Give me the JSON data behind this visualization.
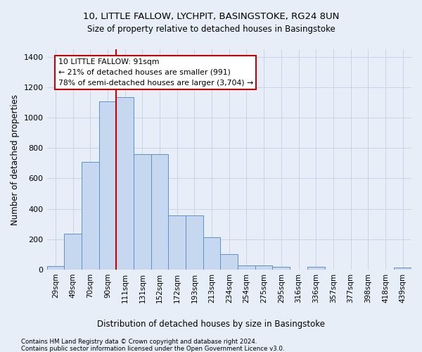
{
  "title_line1": "10, LITTLE FALLOW, LYCHPIT, BASINGSTOKE, RG24 8UN",
  "title_line2": "Size of property relative to detached houses in Basingstoke",
  "xlabel": "Distribution of detached houses by size in Basingstoke",
  "ylabel": "Number of detached properties",
  "categories": [
    "29sqm",
    "49sqm",
    "70sqm",
    "90sqm",
    "111sqm",
    "131sqm",
    "152sqm",
    "172sqm",
    "193sqm",
    "213sqm",
    "234sqm",
    "254sqm",
    "275sqm",
    "295sqm",
    "316sqm",
    "336sqm",
    "357sqm",
    "377sqm",
    "398sqm",
    "418sqm",
    "439sqm"
  ],
  "values": [
    25,
    235,
    710,
    1105,
    1135,
    760,
    760,
    355,
    355,
    215,
    100,
    30,
    30,
    18,
    0,
    18,
    0,
    0,
    0,
    0,
    12
  ],
  "bar_color": "#c5d8f0",
  "bar_edge_color": "#6090c8",
  "vline_color": "#cc0000",
  "annotation_text": "10 LITTLE FALLOW: 91sqm\n← 21% of detached houses are smaller (991)\n78% of semi-detached houses are larger (3,704) →",
  "annotation_box_color": "#ffffff",
  "annotation_box_edge_color": "#cc0000",
  "ylim": [
    0,
    1450
  ],
  "yticks": [
    0,
    200,
    400,
    600,
    800,
    1000,
    1200,
    1400
  ],
  "grid_color": "#c8d4e8",
  "background_color": "#e8eef8",
  "footnote1": "Contains HM Land Registry data © Crown copyright and database right 2024.",
  "footnote2": "Contains public sector information licensed under the Open Government Licence v3.0."
}
